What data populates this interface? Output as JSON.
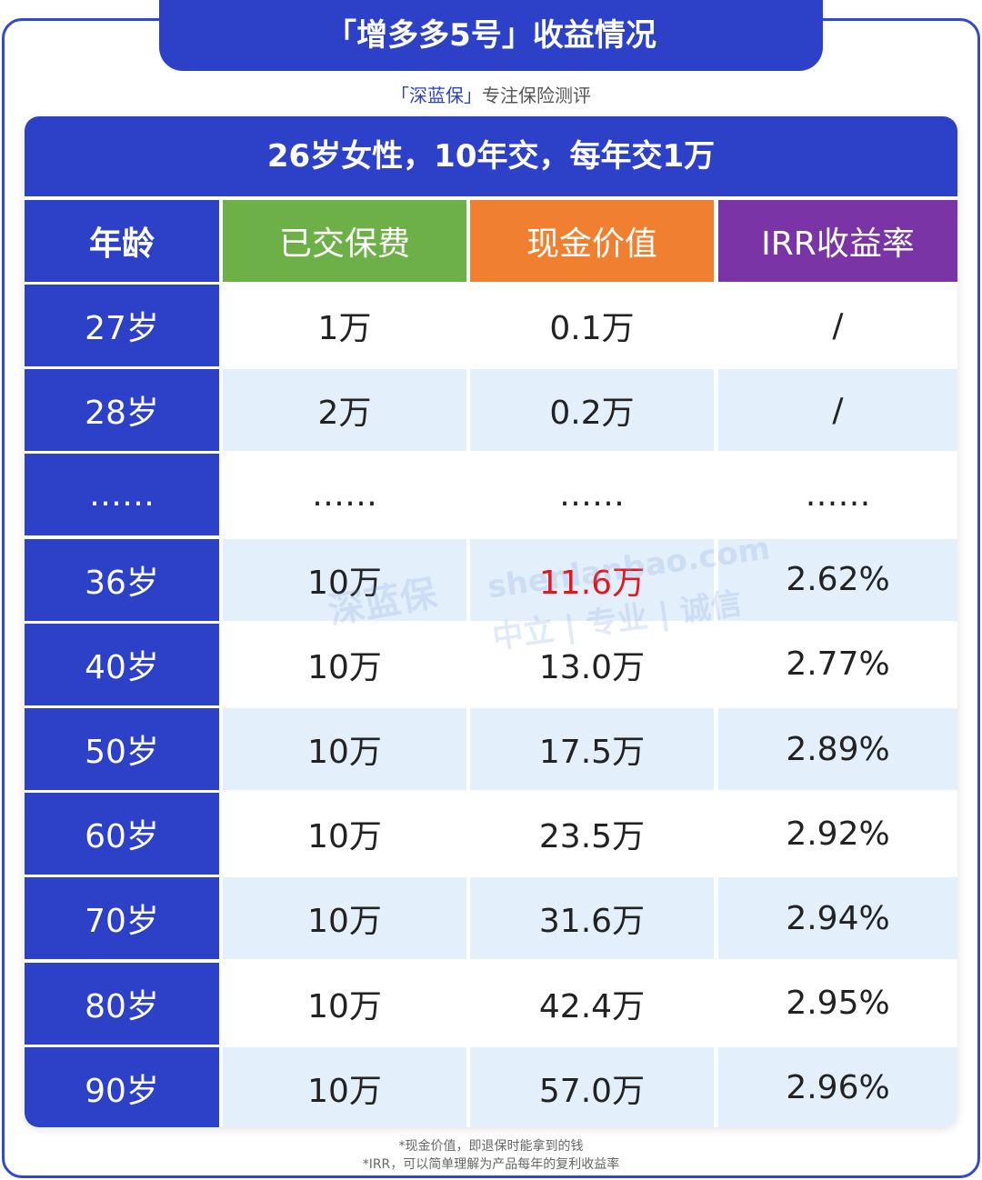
{
  "header": {
    "title": "「增多多5号」收益情况",
    "brand": "「深蓝保」",
    "subtitle": "专注保险测评"
  },
  "table": {
    "caption": "26岁女性，10年交，每年交1万",
    "columns": [
      "年龄",
      "已交保费",
      "现金价值",
      "IRR收益率"
    ],
    "rows": [
      [
        "27岁",
        "1万",
        "0.1万",
        "/"
      ],
      [
        "28岁",
        "2万",
        "0.2万",
        "/"
      ],
      [
        "……",
        "……",
        "……",
        "……"
      ],
      [
        "36岁",
        "10万",
        "11.6万",
        "2.62%"
      ],
      [
        "40岁",
        "10万",
        "13.0万",
        "2.77%"
      ],
      [
        "50岁",
        "10万",
        "17.5万",
        "2.89%"
      ],
      [
        "60岁",
        "10万",
        "23.5万",
        "2.92%"
      ],
      [
        "70岁",
        "10万",
        "31.6万",
        "2.94%"
      ],
      [
        "80岁",
        "10万",
        "42.4万",
        "2.95%"
      ],
      [
        "90岁",
        "10万",
        "57.0万",
        "2.96%"
      ]
    ]
  },
  "watermark": {
    "logo": "深蓝保",
    "site": "shenlanbao.com",
    "slogan": "中立 | 专业 | 诚信"
  },
  "footnotes": [
    "*现金价值，即退保时能拿到的钱",
    "*IRR，可以简单理解为产品每年的复利收益率"
  ]
}
